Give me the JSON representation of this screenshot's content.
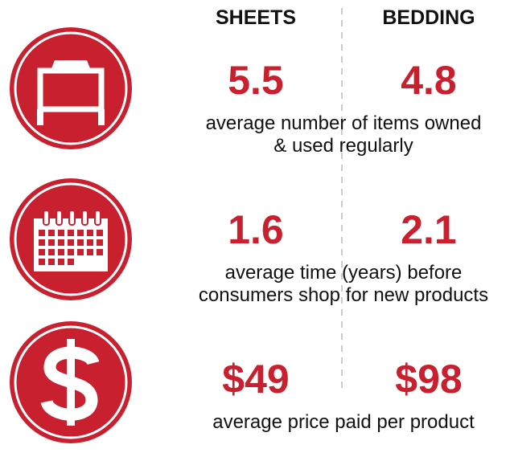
{
  "headers": [
    "SHEETS",
    "BEDDING"
  ],
  "rows": [
    {
      "sheets": "5.5",
      "bedding": "4.8",
      "description": [
        "average number of items owned",
        "& used regularly"
      ]
    },
    {
      "sheets": "1.6",
      "bedding": "2.1",
      "description": [
        "average time (years) before",
        "consumers shop for new products"
      ]
    },
    {
      "sheets": "$49",
      "bedding": "$98",
      "description": [
        "average price paid per product"
      ]
    }
  ]
}
